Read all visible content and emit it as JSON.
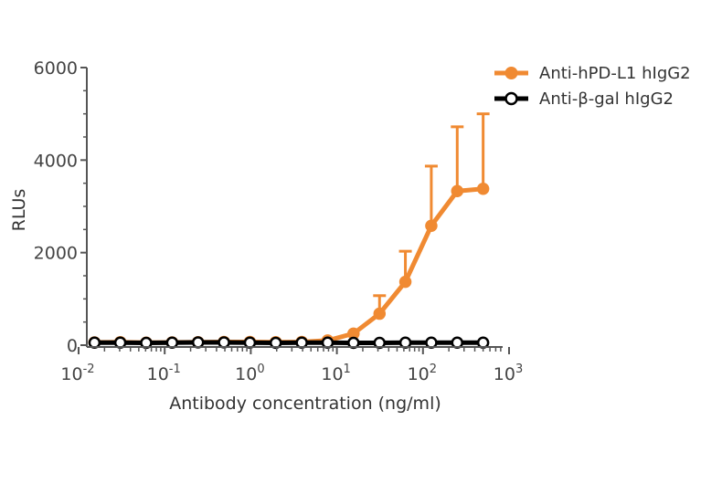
{
  "chart_data": {
    "type": "line",
    "title": "",
    "xlabel": "Antibody concentration (ng/ml)",
    "ylabel": "RLUs",
    "x_scale": "log",
    "xlim": [
      0.01,
      1000
    ],
    "ylim": [
      0,
      6000
    ],
    "y_ticks": [
      "0",
      "2000",
      "4000",
      "6000"
    ],
    "x_ticks": [
      {
        "base": "10",
        "exp": "-2"
      },
      {
        "base": "10",
        "exp": "-1"
      },
      {
        "base": "10",
        "exp": "0"
      },
      {
        "base": "10",
        "exp": "1"
      },
      {
        "base": "10",
        "exp": "2"
      },
      {
        "base": "10",
        "exp": "3"
      }
    ],
    "legend_position": "top-right",
    "series": [
      {
        "name": "Anti-hPD-L1 hIgG2",
        "color": "#f08a32",
        "marker": "filled-circle",
        "x": [
          0.0153,
          0.0305,
          0.061,
          0.122,
          0.244,
          0.488,
          0.977,
          1.95,
          3.91,
          7.81,
          15.6,
          31.3,
          62.5,
          125,
          250,
          500
        ],
        "y": [
          60,
          65,
          55,
          60,
          65,
          70,
          70,
          65,
          70,
          100,
          250,
          680,
          1370,
          2580,
          3330,
          3380
        ],
        "error_upper": [
          null,
          null,
          null,
          null,
          null,
          null,
          null,
          null,
          null,
          null,
          null,
          1070,
          2030,
          3870,
          4720,
          5000
        ]
      },
      {
        "name": "Anti-β-gal hIgG2",
        "color": "#000000",
        "marker": "open-circle",
        "x": [
          0.0153,
          0.0305,
          0.061,
          0.122,
          0.244,
          0.488,
          0.977,
          1.95,
          3.91,
          7.81,
          15.6,
          31.3,
          62.5,
          125,
          250,
          500
        ],
        "y": [
          55,
          55,
          50,
          55,
          60,
          60,
          55,
          50,
          55,
          55,
          50,
          50,
          55,
          55,
          55,
          55
        ]
      }
    ]
  }
}
